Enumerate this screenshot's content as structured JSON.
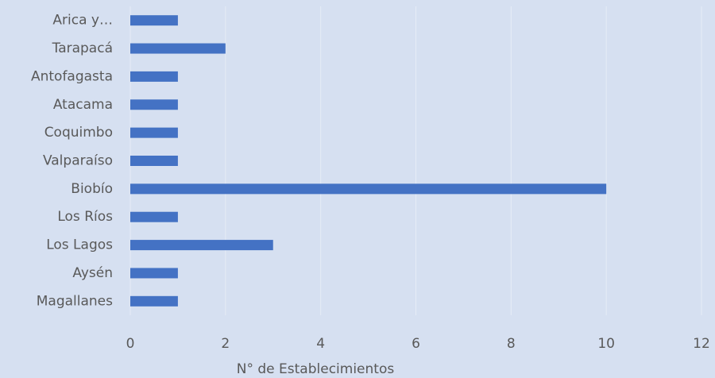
{
  "chart_data": {
    "type": "bar",
    "orientation": "horizontal",
    "x_label": "N° de Establecimientos",
    "categories": [
      "Arica y…",
      "Tarapacá",
      "Antofagasta",
      "Atacama",
      "Coquimbo",
      "Valparaíso",
      "Biobío",
      "Los Ríos",
      "Los Lagos",
      "Aysén",
      "Magallanes"
    ],
    "values": [
      1,
      2,
      1,
      1,
      1,
      1,
      10,
      1,
      3,
      1,
      1
    ],
    "color": "#4472c4",
    "xlim": [
      0,
      12
    ],
    "xticks": [
      0,
      2,
      4,
      6,
      8,
      10,
      12
    ],
    "grid": true
  }
}
